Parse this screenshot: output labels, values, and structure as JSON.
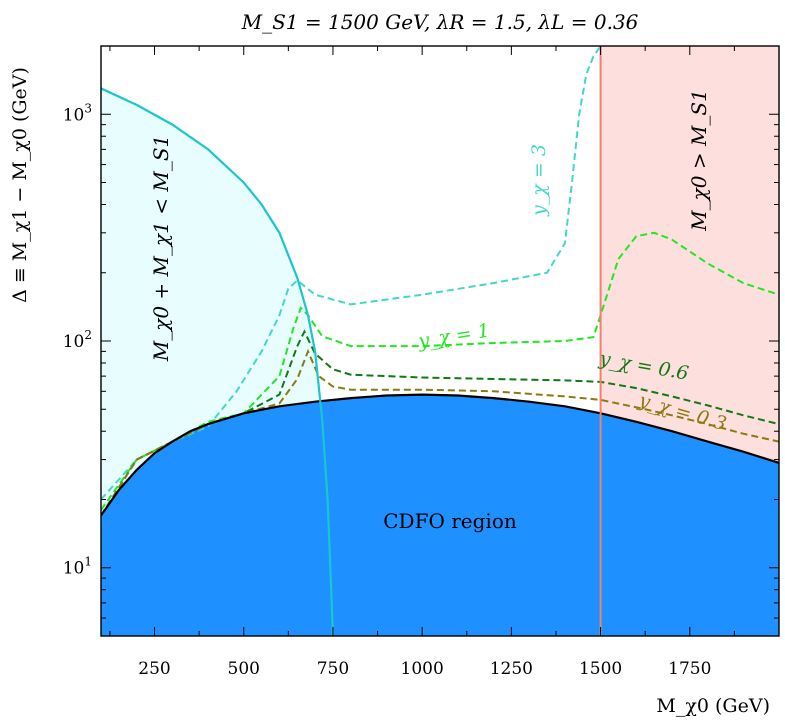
{
  "chart_data": {
    "type": "line",
    "title": "M_S1 = 1500 GeV,  λR = 1.5,  λL = 0.36",
    "xlabel": "M_χ0 (GeV)",
    "ylabel": "Δ ≡ M_χ1 − M_χ0 (GeV)",
    "xlim": [
      100,
      2000
    ],
    "ylim": [
      5,
      2000
    ],
    "yscale": "log",
    "grid": false,
    "x_ticks": [
      250,
      500,
      750,
      1000,
      1250,
      1500,
      1750
    ],
    "x_tick_labels": [
      "250",
      "500",
      "750",
      "1000",
      "1250",
      "1500",
      "1750"
    ],
    "y_ticks": [
      10,
      100,
      1000
    ],
    "y_tick_labels": [
      "10^1",
      "10^2",
      "10^3"
    ],
    "colors": {
      "cdfo": "#1e90ff",
      "kinematic": "#e8fdfd",
      "kinematic_line": "#1bc6cc",
      "mass_region": "#fde0dd",
      "mass_line": "#f08070",
      "y3": "#40d9c8",
      "y1": "#22e622",
      "y06": "#127812",
      "y03": "#8a7a10"
    },
    "regions": {
      "cdfo_label": "CDFO region",
      "kinematic_label": "M_χ0 + M_χ1 < M_S1",
      "mass_label": "M_χ0 > M_S1",
      "cdfo_boundary": {
        "x": [
          100,
          150,
          200,
          250,
          300,
          350,
          400,
          500,
          600,
          700,
          800,
          900,
          1000,
          1100,
          1200,
          1300,
          1400,
          1500,
          1600,
          1700,
          1800,
          1900,
          2000
        ],
        "y": [
          17,
          22,
          27,
          32,
          36,
          40,
          43,
          48,
          51.5,
          54,
          56,
          57.5,
          58,
          57.5,
          56,
          54,
          51.5,
          48,
          44,
          40,
          36,
          32.5,
          29
        ]
      },
      "kinematic_boundary": {
        "x": [
          100,
          200,
          300,
          400,
          500,
          550,
          600,
          650,
          680,
          700,
          720,
          735,
          745,
          750
        ],
        "y": [
          1300,
          1100,
          900,
          700,
          500,
          400,
          300,
          190,
          130,
          90,
          45,
          20,
          8,
          5
        ]
      },
      "mass_boundary_x": 1500
    },
    "series": [
      {
        "name": "y_χ = 3",
        "x": [
          100,
          200,
          300,
          400,
          480,
          550,
          600,
          625,
          650,
          700,
          800,
          1000,
          1200,
          1350,
          1400,
          1420,
          1440,
          1460,
          1480,
          1500
        ],
        "y": [
          20,
          30,
          36,
          42,
          60,
          90,
          130,
          170,
          185,
          160,
          145,
          160,
          180,
          200,
          270,
          500,
          1000,
          1500,
          1800,
          2000
        ]
      },
      {
        "name": "y_χ = 1",
        "x": [
          100,
          200,
          300,
          400,
          500,
          600,
          640,
          660,
          680,
          720,
          800,
          1000,
          1200,
          1400,
          1480,
          1500,
          1550,
          1600,
          1650,
          1700,
          1800,
          1900,
          2000
        ],
        "y": [
          18,
          30,
          36,
          44,
          48,
          70,
          115,
          140,
          130,
          105,
          95,
          95,
          98,
          100,
          104,
          130,
          230,
          290,
          300,
          280,
          220,
          180,
          160
        ]
      },
      {
        "name": "y_χ = 0.6",
        "x": [
          100,
          200,
          300,
          400,
          500,
          600,
          650,
          670,
          700,
          750,
          800,
          1000,
          1200,
          1400,
          1500,
          1600,
          1700,
          1800,
          1900,
          2000
        ],
        "y": [
          17,
          30,
          36,
          43,
          48,
          58,
          95,
          110,
          88,
          75,
          71,
          69,
          68,
          67,
          66,
          62,
          57,
          52,
          47,
          43
        ]
      },
      {
        "name": "y_χ = 0.3",
        "x": [
          100,
          200,
          300,
          400,
          500,
          600,
          650,
          680,
          710,
          750,
          800,
          1000,
          1200,
          1400,
          1500,
          1600,
          1700,
          1800,
          1900,
          2000
        ],
        "y": [
          17,
          30,
          36,
          43,
          48,
          53,
          68,
          90,
          70,
          63,
          61,
          61,
          60,
          57,
          55,
          51,
          47,
          43,
          39,
          36
        ]
      }
    ],
    "annotations": [
      {
        "text": "y_χ = 3",
        "series": "y_χ = 3"
      },
      {
        "text": "y_χ = 1",
        "series": "y_χ = 1"
      },
      {
        "text": "y_χ = 0.6",
        "series": "y_χ = 0.6"
      },
      {
        "text": "y_χ = 0.3",
        "series": "y_χ = 0.3"
      }
    ]
  }
}
